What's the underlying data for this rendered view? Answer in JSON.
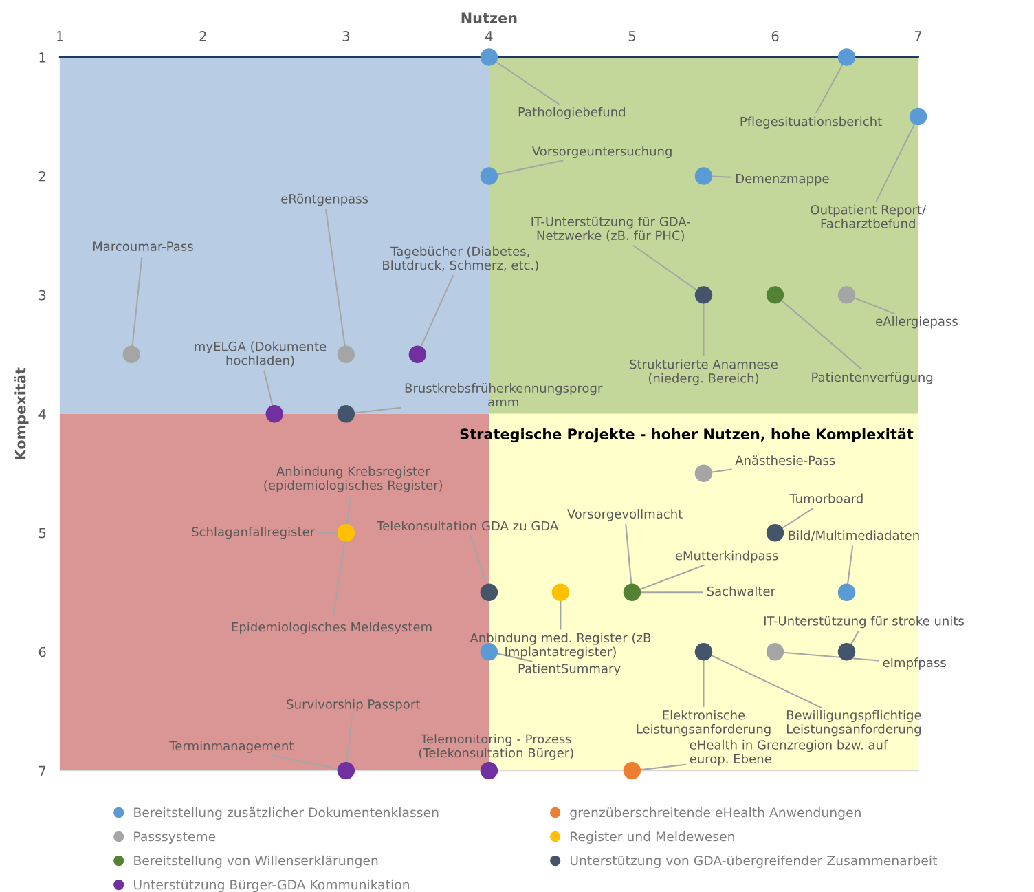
{
  "chart_data": {
    "type": "scatter",
    "xlabel": "Nutzen",
    "ylabel": "Kompexität",
    "xlim": [
      1,
      7
    ],
    "xticks": [
      1,
      2,
      3,
      4,
      5,
      6,
      7
    ],
    "ylim": [
      7,
      1
    ],
    "yticks": [
      1,
      2,
      3,
      4,
      5,
      6,
      7
    ],
    "grid": false,
    "legend": "bottom",
    "marker": "circle",
    "series": [
      {
        "name": "Bereitstellung zusätzlicher Dokumentenklassen",
        "color": "#5b9bd5",
        "x": [
          4,
          6.5,
          7,
          4,
          5.5,
          6.5,
          4
        ],
        "values": [
          1,
          1,
          1.5,
          2,
          2,
          5.5,
          6
        ]
      },
      {
        "name": "Passsysteme",
        "color": "#a5a5a5",
        "x": [
          1.5,
          3,
          6.5,
          5.5,
          6
        ],
        "values": [
          3.5,
          3.5,
          3,
          4.5,
          6
        ]
      },
      {
        "name": "Bereitstellung von Willenserklärungen",
        "color": "#548235",
        "x": [
          6,
          5
        ],
        "values": [
          3,
          5.5
        ]
      },
      {
        "name": "Unterstützung Bürger-GDA Kommunikation",
        "color": "#7030a0",
        "x": [
          3.5,
          2.5,
          3,
          4
        ],
        "values": [
          3.5,
          4,
          7,
          7
        ]
      },
      {
        "name": "grenzüberschreitende eHealth Anwendungen",
        "color": "#ed7d31",
        "x": [
          5
        ],
        "values": [
          7
        ]
      },
      {
        "name": "Register und Meldewesen",
        "color": "#ffc000",
        "x": [
          3,
          4.5
        ],
        "values": [
          5,
          5.5
        ]
      },
      {
        "name": "Unterstützung von GDA-übergreifender Zusammenarbeit",
        "color": "#44546a",
        "x": [
          5.5,
          3,
          6,
          4,
          6.5,
          5.5
        ],
        "values": [
          3,
          4,
          5,
          5.5,
          6,
          6
        ]
      }
    ],
    "annotations": [
      {
        "text": "Pathologiebefund",
        "x": 4,
        "y": 1
      },
      {
        "text": "Pflegesituationsbericht",
        "x": 6.5,
        "y": 1
      },
      {
        "text": "Outpatient Report/\nFacharztbefund",
        "x": 7,
        "y": 1.5
      },
      {
        "text": "Vorsorgeuntersuchung",
        "x": 4,
        "y": 2
      },
      {
        "text": "Demenzmappe",
        "x": 5.5,
        "y": 2
      },
      {
        "text": "Bild/Multimediadaten",
        "x": 6.5,
        "y": 5.5
      },
      {
        "text": "PatientSummary",
        "x": 4,
        "y": 6
      },
      {
        "text": "Marcoumar-Pass",
        "x": 1.5,
        "y": 3.5
      },
      {
        "text": "eRöntgenpass",
        "x": 3,
        "y": 3.5
      },
      {
        "text": "eAllergiepass",
        "x": 6.5,
        "y": 3
      },
      {
        "text": "Anästhesie-Pass",
        "x": 5.5,
        "y": 4.5
      },
      {
        "text": "eImpfpass",
        "x": 6,
        "y": 6
      },
      {
        "text": "Patientenverfügung",
        "x": 6,
        "y": 3
      },
      {
        "text": "eMutterkindpass",
        "x": 5,
        "y": 5.5
      },
      {
        "text": "Sachwalter",
        "x": 5,
        "y": 5.5
      },
      {
        "text": "Vorsorgevollmacht",
        "x": 5,
        "y": 5.5
      },
      {
        "text": "Tagebücher (Diabetes,\nBlutdruck, Schmerz, etc.)",
        "x": 3.5,
        "y": 3.5
      },
      {
        "text": "myELGA (Dokumente\nhochladen)",
        "x": 2.5,
        "y": 4
      },
      {
        "text": "Survivorship Passport",
        "x": 3,
        "y": 7
      },
      {
        "text": "Terminmanagement",
        "x": 3,
        "y": 7
      },
      {
        "text": "Telemonitoring - Prozess\n(Telekonsultation Bürger)",
        "x": 4,
        "y": 7
      },
      {
        "text": "Schlaganfallregister",
        "x": 3,
        "y": 5
      },
      {
        "text": "Anbindung Krebsregister\n(epidemiologisches Register)",
        "x": 3,
        "y": 5
      },
      {
        "text": "Epidemiologisches Meldesystem",
        "x": 3,
        "y": 5
      },
      {
        "text": "Anbindung med. Register (zB\nImplantatregister)",
        "x": 4.5,
        "y": 5.5
      },
      {
        "text": "IT-Unterstützung für GDA-\nNetzwerke (zB. für PHC)",
        "x": 5.5,
        "y": 3
      },
      {
        "text": "Strukturierte Anamnese\n(niederg. Bereich)",
        "x": 5.5,
        "y": 3
      },
      {
        "text": "Brustkrebsfrüherkennungsprogr\namm",
        "x": 3,
        "y": 4
      },
      {
        "text": "Tumorboard",
        "x": 6,
        "y": 5
      },
      {
        "text": "Telekonsultation GDA zu GDA",
        "x": 4,
        "y": 5.5
      },
      {
        "text": "IT-Unterstützung für stroke units",
        "x": 6.5,
        "y": 6
      },
      {
        "text": "Elektronische\nLeistungsanforderung",
        "x": 5.5,
        "y": 6
      },
      {
        "text": "Bewilligungspflichtige\nLeistungsanforderung",
        "x": 5.5,
        "y": 6
      },
      {
        "text": "eHealth in Grenzregion bzw. auf\neurop. Ebene",
        "x": 5,
        "y": 7
      },
      "Strategische Projekte - hoher Nutzen, hohe Komplexität"
    ]
  }
}
